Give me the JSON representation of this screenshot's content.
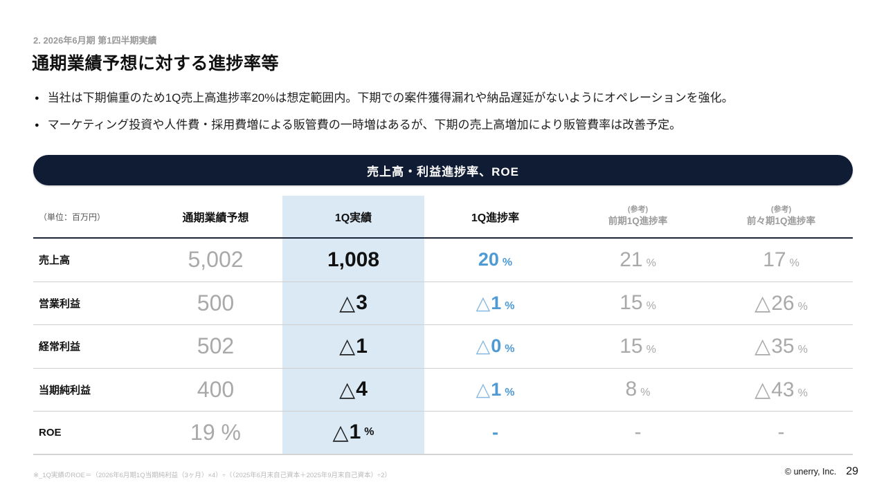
{
  "page": {
    "eyebrow": "2. 2026年6月期 第1四半期実績",
    "title": "通期業績予想に対する進捗率等",
    "bullet_marker": "●",
    "bullets": [
      "当社は下期偏重のため1Q売上高進捗率20%は想定範囲内。下期での案件獲得漏れや納品遅延がないようにオペレーションを強化。",
      "マーケティング投資や人件費・採用費増による販管費の一時増はあるが、下期の売上高増加により販管費率は改善予定。"
    ],
    "banner": "売上高・利益進捗率、ROE",
    "footnote": "※_1Q実績のROE＝（2026年6月期1Q当期純利益（3ヶ月）×4）÷（（2025年6月末自己資本＋2025年9月末自己資本）÷2）",
    "copyright": "© unerry, Inc.",
    "page_number": "29"
  },
  "colors": {
    "banner_bg": "#101c33",
    "highlight_column_bg": "#dbe9f4",
    "accent_blue": "#4d9ad5",
    "muted_gray": "#a9a9a9"
  },
  "table": {
    "unit_label": "（単位：百万円）",
    "columns": {
      "forecast": "通期業績予想",
      "actual": "1Q実績",
      "progress": "1Q進捗率",
      "prev_note": "(参考)",
      "prev": "前期1Q進捗率",
      "prev2_note": "(参考)",
      "prev2": "前々期1Q進捗率"
    },
    "rows": [
      {
        "label": "売上高",
        "forecast": {
          "main": "5,002",
          "suffix": ""
        },
        "actual": {
          "main": "1,008",
          "suffix": ""
        },
        "progress": {
          "main": "20",
          "suffix": "%"
        },
        "prev": {
          "main": "21",
          "suffix": "%"
        },
        "prev2": {
          "main": "17",
          "suffix": "%"
        }
      },
      {
        "label": "営業利益",
        "forecast": {
          "main": "500",
          "suffix": ""
        },
        "actual": {
          "main": "△3",
          "suffix": ""
        },
        "progress": {
          "main": "△1",
          "suffix": "%"
        },
        "prev": {
          "main": "15",
          "suffix": "%"
        },
        "prev2": {
          "main": "△26",
          "suffix": "%"
        }
      },
      {
        "label": "経常利益",
        "forecast": {
          "main": "502",
          "suffix": ""
        },
        "actual": {
          "main": "△1",
          "suffix": ""
        },
        "progress": {
          "main": "△0",
          "suffix": "%"
        },
        "prev": {
          "main": "15",
          "suffix": "%"
        },
        "prev2": {
          "main": "△35",
          "suffix": "%"
        }
      },
      {
        "label": "当期純利益",
        "forecast": {
          "main": "400",
          "suffix": ""
        },
        "actual": {
          "main": "△4",
          "suffix": ""
        },
        "progress": {
          "main": "△1",
          "suffix": "%"
        },
        "prev": {
          "main": "8",
          "suffix": "%"
        },
        "prev2": {
          "main": "△43",
          "suffix": "%"
        }
      },
      {
        "label": "ROE",
        "forecast": {
          "main": "19 %",
          "suffix": ""
        },
        "actual": {
          "main": "△1",
          "suffix": "%"
        },
        "progress": {
          "main": "-",
          "suffix": ""
        },
        "prev": {
          "main": "-",
          "suffix": ""
        },
        "prev2": {
          "main": "-",
          "suffix": ""
        }
      }
    ]
  }
}
